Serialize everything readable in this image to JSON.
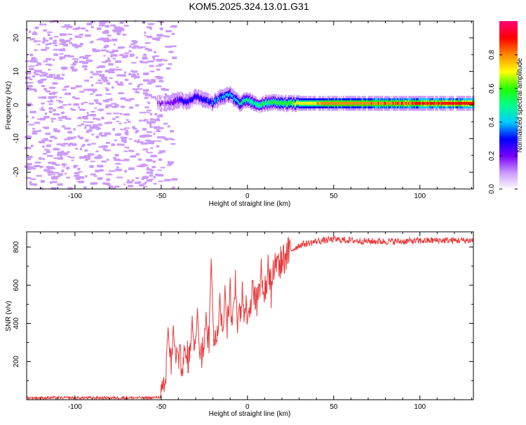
{
  "title": "KOM5.2025.324.13.01.G31",
  "chart_data": [
    {
      "type": "heatmap",
      "name": "spectrogram",
      "xlabel": "Height of straight line (km)",
      "ylabel": "Frequency (Hz)",
      "xlim": [
        -128,
        131
      ],
      "ylim": [
        -25,
        25
      ],
      "xticks": [
        -100,
        -50,
        0,
        50,
        100
      ],
      "yticks": [
        -20,
        -10,
        0,
        10,
        20
      ],
      "colorbar": {
        "label": "Normalized spectral amplitude",
        "range": [
          0,
          1
        ],
        "ticks": [
          0.0,
          0.2,
          0.4,
          0.6,
          0.8
        ],
        "tick_labels": [
          "0.0",
          "0.2",
          "0.4",
          "0.6",
          "0.8"
        ],
        "colors": [
          "#ffffff",
          "#cc99ff",
          "#7700ff",
          "#0000ff",
          "#00ccff",
          "#00ff88",
          "#22ff00",
          "#ffff00",
          "#ff8800",
          "#ff0000",
          "#ff0077"
        ]
      },
      "ridge": {
        "noise_below_km": -50,
        "signal_center_hz": [
          [
            -50,
            0.5
          ],
          [
            -45,
            0.5
          ],
          [
            -40,
            1.5
          ],
          [
            -35,
            1.0
          ],
          [
            -30,
            2.5
          ],
          [
            -25,
            1.5
          ],
          [
            -20,
            0.5
          ],
          [
            -15,
            2.5
          ],
          [
            -10,
            3.0
          ],
          [
            -5,
            0.5
          ],
          [
            0,
            1.5
          ],
          [
            5,
            0.0
          ],
          [
            10,
            0.5
          ],
          [
            15,
            1.0
          ],
          [
            20,
            0.5
          ],
          [
            30,
            0.5
          ],
          [
            50,
            0.5
          ],
          [
            131,
            0.5
          ]
        ],
        "amplitude": [
          [
            -50,
            0.2
          ],
          [
            -45,
            0.25
          ],
          [
            -40,
            0.3
          ],
          [
            -30,
            0.35
          ],
          [
            -20,
            0.4
          ],
          [
            -10,
            0.45
          ],
          [
            0,
            0.55
          ],
          [
            10,
            0.6
          ],
          [
            20,
            0.65
          ],
          [
            30,
            0.72
          ],
          [
            50,
            0.85
          ],
          [
            131,
            0.95
          ]
        ]
      }
    },
    {
      "type": "line",
      "name": "snr",
      "xlabel": "Height of straight line (km)",
      "ylabel": "SNR (v/v)",
      "xlim": [
        -128,
        131
      ],
      "ylim": [
        0,
        880
      ],
      "xticks": [
        -100,
        -50,
        0,
        50,
        100
      ],
      "yticks": [
        200,
        400,
        600,
        800
      ],
      "color": "#e8393a",
      "envelope": [
        [
          -128,
          10
        ],
        [
          -55,
          10
        ],
        [
          -50,
          15
        ],
        [
          -48,
          40
        ],
        [
          -46,
          220
        ],
        [
          -44,
          190
        ],
        [
          -42,
          230
        ],
        [
          -40,
          200
        ],
        [
          -35,
          220
        ],
        [
          -30,
          260
        ],
        [
          -25,
          300
        ],
        [
          -20,
          350
        ],
        [
          -15,
          380
        ],
        [
          -10,
          420
        ],
        [
          -5,
          450
        ],
        [
          0,
          480
        ],
        [
          5,
          530
        ],
        [
          10,
          580
        ],
        [
          15,
          660
        ],
        [
          20,
          730
        ],
        [
          25,
          780
        ],
        [
          30,
          810
        ],
        [
          40,
          830
        ],
        [
          50,
          840
        ],
        [
          70,
          830
        ],
        [
          90,
          830
        ],
        [
          110,
          835
        ],
        [
          131,
          835
        ]
      ],
      "peaks": [
        [
          -46,
          380
        ],
        [
          -43,
          390
        ],
        [
          -32,
          440
        ],
        [
          -29,
          480
        ],
        [
          -24,
          460
        ],
        [
          -21,
          740
        ],
        [
          -16,
          560
        ],
        [
          -13,
          600
        ],
        [
          -10,
          640
        ],
        [
          -7,
          680
        ],
        [
          -3,
          620
        ],
        [
          3,
          700
        ],
        [
          8,
          740
        ],
        [
          12,
          760
        ],
        [
          16,
          770
        ]
      ],
      "noise_amplitude": 18
    }
  ]
}
